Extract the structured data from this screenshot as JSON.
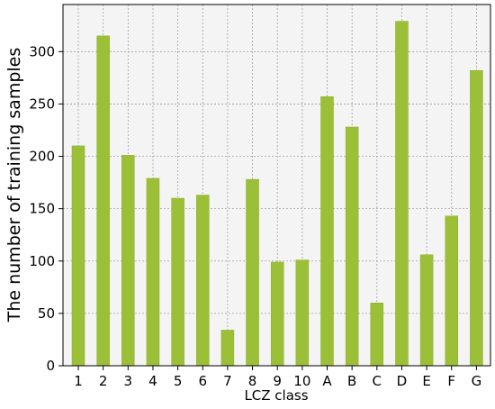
{
  "chart_data": {
    "type": "bar",
    "title": "",
    "xlabel": "LCZ class",
    "ylabel": "The number of training samples",
    "categories": [
      "1",
      "2",
      "3",
      "4",
      "5",
      "6",
      "7",
      "8",
      "9",
      "10",
      "A",
      "B",
      "C",
      "D",
      "E",
      "F",
      "G"
    ],
    "values": [
      210,
      315,
      201,
      179,
      160,
      163,
      34,
      178,
      99,
      101,
      257,
      228,
      60,
      329,
      106,
      143,
      282
    ],
    "ylim": [
      0,
      345
    ],
    "yticks": [
      0,
      50,
      100,
      150,
      200,
      250,
      300
    ],
    "grid": true,
    "legend": "none",
    "colors": {
      "bar": "#9cbf38",
      "bar_edge": "#8aad2c",
      "plot_background": "#f4f4f4",
      "grid": "#a0a0a0",
      "axis": "#000000"
    }
  }
}
